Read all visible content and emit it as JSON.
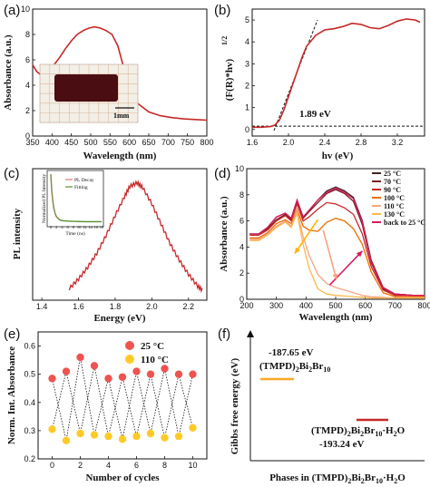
{
  "chart_data": [
    {
      "panel": "(a)",
      "type": "line",
      "xlabel": "Wavelength (nm)",
      "ylabel": "Absorbance (a.u.)",
      "xlim": [
        350,
        800
      ],
      "ylim": [
        0,
        10
      ],
      "xticks": [
        "350",
        "400",
        "450",
        "500",
        "550",
        "600",
        "650",
        "700",
        "750",
        "800"
      ],
      "yticks": [
        "0",
        "2",
        "4",
        "6",
        "8",
        "10"
      ],
      "color": "#c62828",
      "inset_label": "1mm",
      "series": [
        {
          "x": [
            350,
            360,
            375,
            390,
            405,
            420,
            435,
            450,
            465,
            480,
            495,
            510,
            525,
            540,
            555,
            570,
            585,
            600,
            620,
            650,
            680,
            710,
            740,
            770,
            800
          ],
          "y": [
            5.6,
            5.1,
            4.7,
            5.0,
            5.6,
            6.2,
            6.9,
            7.5,
            8.0,
            8.3,
            8.5,
            8.6,
            8.5,
            8.3,
            8.0,
            7.1,
            5.4,
            3.8,
            2.6,
            1.9,
            1.6,
            1.45,
            1.35,
            1.3,
            1.25
          ]
        }
      ]
    },
    {
      "panel": "(b)",
      "type": "line",
      "xlabel": "hv (eV)",
      "ylabel": "(F(R)*hv)^1/2",
      "xlim": [
        1.6,
        3.5
      ],
      "ylim": [
        -0.3,
        5.5
      ],
      "xticks": [
        "1.6",
        "2.0",
        "2.4",
        "2.8",
        "3.2"
      ],
      "yticks": [
        "0",
        "1",
        "2",
        "3",
        "4",
        "5"
      ],
      "color": "#c62828",
      "annotation": "1.89 eV",
      "series": [
        {
          "x": [
            1.6,
            1.7,
            1.8,
            1.85,
            1.9,
            1.95,
            2.0,
            2.05,
            2.1,
            2.15,
            2.2,
            2.3,
            2.4,
            2.5,
            2.6,
            2.7,
            2.8,
            2.9,
            3.0,
            3.1,
            3.2,
            3.3,
            3.4,
            3.45
          ],
          "y": [
            0.1,
            0.1,
            0.13,
            0.2,
            0.42,
            0.9,
            1.5,
            2.1,
            2.7,
            3.3,
            3.8,
            4.3,
            4.55,
            4.6,
            4.7,
            4.85,
            4.8,
            4.65,
            4.6,
            4.75,
            4.95,
            5.05,
            5.0,
            4.9
          ]
        }
      ],
      "tangent": {
        "x": [
          1.84,
          2.32
        ],
        "y": [
          -0.05,
          5.0
        ]
      },
      "baseline": {
        "x": [
          1.6,
          3.5
        ],
        "y": [
          0.15,
          0.15
        ]
      }
    },
    {
      "panel": "(c)",
      "type": "line",
      "xlabel": "Energy (eV)",
      "ylabel": "PL intensity",
      "xlim": [
        1.35,
        2.3
      ],
      "xticks": [
        "1.4",
        "1.6",
        "1.8",
        "2.0",
        "2.2"
      ],
      "color": "#c62828",
      "series": [
        {
          "x": [
            1.55,
            1.6,
            1.65,
            1.7,
            1.75,
            1.8,
            1.85,
            1.88,
            1.92,
            1.95,
            2.0,
            2.05,
            2.1,
            2.15,
            2.2,
            2.25,
            2.28
          ],
          "y": [
            0.1,
            0.18,
            0.28,
            0.4,
            0.55,
            0.72,
            0.88,
            0.97,
            1.0,
            0.96,
            0.82,
            0.65,
            0.48,
            0.34,
            0.22,
            0.12,
            0.08
          ]
        }
      ],
      "inset": {
        "xlabel": "Time (ns)",
        "ylabel": "Normalized PL Intensity",
        "xticks": [
          "0",
          "2",
          "4",
          "6",
          "8",
          "10",
          "12",
          "14",
          "16",
          "18"
        ],
        "legend": [
          "PL Decay",
          "Fitting"
        ],
        "decay_color": "#e57373",
        "fit_color": "#558b2f",
        "x": [
          0,
          0.3,
          0.6,
          1,
          1.5,
          2,
          3,
          4,
          6,
          8,
          12,
          16,
          18
        ],
        "y": [
          1,
          0.7,
          0.5,
          0.33,
          0.2,
          0.13,
          0.07,
          0.05,
          0.04,
          0.035,
          0.03,
          0.03,
          0.03
        ]
      }
    },
    {
      "panel": "(d)",
      "type": "line",
      "xlabel": "Wavelength (nm)",
      "ylabel": "Absorbance (a.u.)",
      "xlim": [
        200,
        800
      ],
      "ylim": [
        0,
        10
      ],
      "xticks": [
        "200",
        "300",
        "400",
        "500",
        "600",
        "700",
        "800"
      ],
      "yticks": [
        "0",
        "2",
        "4",
        "6",
        "8",
        "10"
      ],
      "series": [
        {
          "name": "25 °C",
          "color": "#3e2723",
          "x": [
            210,
            240,
            270,
            300,
            330,
            350,
            370,
            390,
            410,
            440,
            470,
            500,
            530,
            560,
            590,
            620,
            660,
            700,
            760,
            800
          ],
          "y": [
            5.0,
            5.0,
            5.5,
            6.3,
            6.6,
            6.2,
            7.6,
            6.3,
            6.8,
            7.6,
            8.3,
            8.6,
            8.3,
            7.8,
            6.0,
            3.0,
            0.9,
            0.4,
            0.3,
            0.3
          ]
        },
        {
          "name": "70 °C",
          "color": "#7b1e1e",
          "x": [
            210,
            240,
            270,
            300,
            330,
            350,
            370,
            390,
            410,
            440,
            470,
            500,
            530,
            560,
            590,
            620,
            660,
            700,
            760,
            800
          ],
          "y": [
            5.0,
            5.0,
            5.4,
            6.1,
            6.5,
            6.1,
            7.5,
            6.2,
            6.7,
            7.4,
            8.1,
            8.4,
            8.1,
            7.5,
            5.7,
            2.8,
            0.8,
            0.4,
            0.3,
            0.3
          ]
        },
        {
          "name": "90 °C",
          "color": "#c62828",
          "x": [
            210,
            240,
            270,
            300,
            330,
            350,
            370,
            390,
            410,
            440,
            470,
            500,
            530,
            560,
            590,
            620,
            660,
            700,
            760,
            800
          ],
          "y": [
            4.9,
            4.9,
            5.3,
            6.0,
            6.4,
            6.0,
            7.3,
            6.0,
            6.3,
            6.9,
            7.4,
            7.3,
            7.0,
            6.5,
            5.0,
            2.5,
            0.7,
            0.3,
            0.3,
            0.3
          ]
        },
        {
          "name": "100 °C",
          "color": "#ef6c00",
          "x": [
            210,
            240,
            270,
            300,
            330,
            350,
            370,
            390,
            410,
            440,
            470,
            500,
            530,
            560,
            590,
            620,
            660,
            700,
            760,
            800
          ],
          "y": [
            4.7,
            4.7,
            5.1,
            5.8,
            6.1,
            5.8,
            6.9,
            5.6,
            5.3,
            5.2,
            5.9,
            6.2,
            6.0,
            5.4,
            4.2,
            2.1,
            0.5,
            0.2,
            0.2,
            0.2
          ]
        },
        {
          "name": "110 °C",
          "color": "#f4a582",
          "x": [
            210,
            240,
            270,
            300,
            330,
            350,
            370,
            390,
            410,
            440,
            470,
            500,
            530,
            560,
            590,
            620,
            660,
            700,
            760,
            800
          ],
          "y": [
            4.6,
            4.6,
            5.0,
            5.6,
            6.0,
            5.6,
            6.8,
            4.8,
            3.4,
            1.9,
            1.2,
            0.9,
            0.7,
            0.5,
            0.3,
            0.2,
            0.15,
            0.1,
            0.1,
            0.1
          ]
        },
        {
          "name": "130 °C",
          "color": "#ffb74d",
          "x": [
            210,
            240,
            270,
            300,
            330,
            350,
            370,
            390,
            410,
            440,
            470,
            500,
            530,
            560,
            590,
            620,
            660,
            700,
            760,
            800
          ],
          "y": [
            4.5,
            4.5,
            4.9,
            5.5,
            5.9,
            5.5,
            6.6,
            4.2,
            2.4,
            0.8,
            0.4,
            0.3,
            0.25,
            0.2,
            0.15,
            0.1,
            0.1,
            0.1,
            0.1,
            0.1
          ]
        },
        {
          "name": "back to 25 °C",
          "color": "#d81b60",
          "x": [
            210,
            240,
            270,
            300,
            330,
            350,
            370,
            390,
            410,
            440,
            470,
            500,
            530,
            560,
            590,
            620,
            660,
            700,
            760,
            800
          ],
          "y": [
            5.0,
            5.0,
            5.5,
            6.3,
            6.6,
            6.2,
            7.6,
            6.3,
            6.8,
            7.6,
            8.2,
            8.5,
            8.2,
            7.7,
            5.9,
            2.9,
            0.9,
            0.4,
            0.3,
            0.3
          ]
        }
      ],
      "arrows": [
        {
          "from": [
            440,
            6.1
          ],
          "to": [
            362,
            3.5
          ],
          "color": "#ffb300"
        },
        {
          "from": [
            480,
            1.1
          ],
          "to": [
            590,
            3.7
          ],
          "color": "#d81b60"
        },
        {
          "from": [
            458,
            5.3
          ],
          "to": [
            503,
            1.5
          ],
          "color": "#f4a582"
        }
      ]
    },
    {
      "panel": "(e)",
      "type": "scatter",
      "xlabel": "Number of cycles",
      "ylabel": "Norm. Int. Absorbance",
      "xlim": [
        -1,
        11
      ],
      "ylim": [
        0.2,
        0.65
      ],
      "xticks": [
        "0",
        "2",
        "4",
        "6",
        "8",
        "10"
      ],
      "yticks": [
        "0.2",
        "0.3",
        "0.4",
        "0.5",
        "0.6"
      ],
      "series": [
        {
          "name": "25 °C",
          "color": "#ef5350",
          "x": [
            0,
            2,
            4,
            6,
            8,
            10
          ],
          "y": [
            0.485,
            0.56,
            0.485,
            0.51,
            0.5,
            0.5
          ]
        },
        {
          "name": "110 °C",
          "color": "#ffca28",
          "x": [
            1,
            3,
            5,
            7,
            9
          ],
          "y": [
            0.265,
            0.285,
            0.27,
            0.29,
            0.275
          ]
        }
      ],
      "extra_points": {
        "hot_x": [
          0,
          1,
          2,
          3,
          4,
          5,
          6,
          7,
          8,
          9,
          10
        ],
        "hot_y": [
          0.485,
          0.51,
          0.56,
          0.53,
          0.485,
          0.49,
          0.51,
          0.5,
          0.52,
          0.5,
          0.5
        ],
        "cold_x": [
          0,
          1,
          2,
          3,
          4,
          5,
          6,
          7,
          8,
          9,
          10
        ],
        "cold_y": [
          0.305,
          0.265,
          0.29,
          0.285,
          0.28,
          0.27,
          0.28,
          0.29,
          0.275,
          0.28,
          0.31
        ]
      }
    },
    {
      "panel": "(f)",
      "type": "diagram",
      "xlabel": "Phases in (TMPD)2Bi2Br10·H2O",
      "ylabel": "Gibbs free energy (eV)",
      "levels": [
        {
          "label": "(TMPD)2Bi2Br10",
          "value": "-187.65 eV",
          "color": "#f9a825"
        },
        {
          "label": "(TMPD)2Bi2Br10·H2O",
          "value": "-193.24 eV",
          "color": "#c62828"
        }
      ]
    }
  ],
  "text": {
    "a": {
      "panel": "(a)",
      "xlabel": "Wavelength (nm)",
      "ylabel": "Absorbance (a.u.)",
      "scale": "1mm"
    },
    "b": {
      "panel": "(b)",
      "xlabel": "hv (eV)",
      "ylabel": "(F(R)*hv)",
      "ylabel_exp": "1/2",
      "ann": "1.89 eV"
    },
    "c": {
      "panel": "(c)",
      "xlabel": "Energy (eV)",
      "ylabel": "PL intensity",
      "ins_decay": "PL Decay",
      "ins_fit": "Fitting",
      "ins_xlabel": "Time (ns)",
      "ins_ylabel": "Normalized PL Intensity"
    },
    "d": {
      "panel": "(d)",
      "xlabel": "Wavelength (nm)",
      "ylabel": "Absorbance (a.u.)"
    },
    "e": {
      "panel": "(e)",
      "xlabel": "Number of cycles",
      "ylabel": "Norm. Int. Absorbance",
      "leg1": "25 °C",
      "leg2": "110 °C"
    },
    "f": {
      "panel": "(f)",
      "xlabel_pre": "Phases in (TMPD)",
      "xlabel_sub1": "2",
      "xlabel_mid": "Bi",
      "xlabel_sub2": "2",
      "xlabel_mid2": "Br",
      "xlabel_sub3": "10",
      "xlabel_post": "·H",
      "xlabel_sub4": "2",
      "xlabel_end": "O",
      "ylabel": "Gibbs free energy (eV)",
      "e1": "-187.65 eV",
      "e2": "-193.24 eV",
      "f1a": "(TMPD)",
      "f1s1": "2",
      "f1b": "Bi",
      "f1s2": "2",
      "f1c": "Br",
      "f1s3": "10",
      "f2a": "(TMPD)",
      "f2s1": "2",
      "f2b": "Bi",
      "f2s2": "2",
      "f2c": "Br",
      "f2s3": "10",
      "f2d": "·H",
      "f2s4": "2",
      "f2e": "O"
    }
  }
}
